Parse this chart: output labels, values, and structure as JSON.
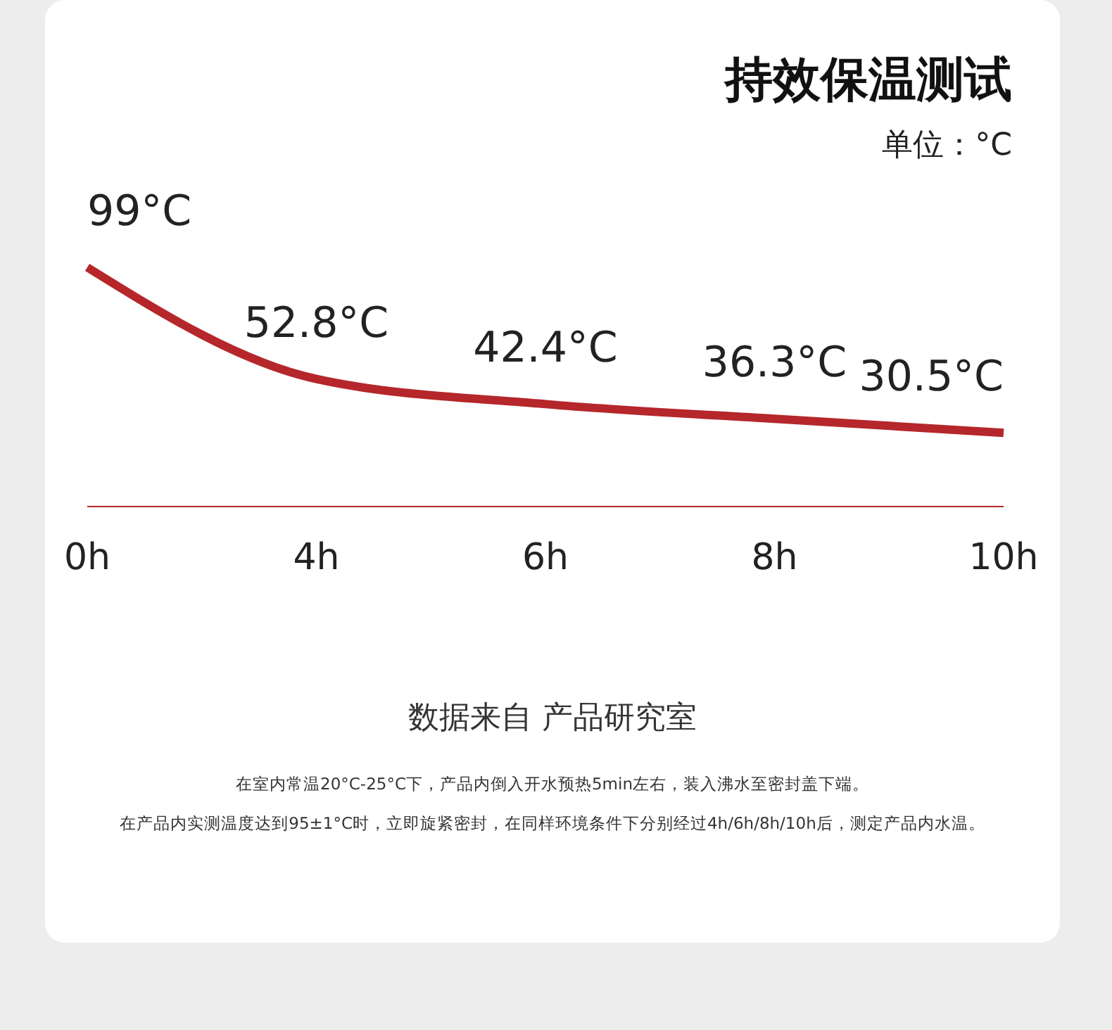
{
  "chart_data": {
    "type": "line",
    "title": "持效保温测试",
    "subtitle": "单位：°C",
    "categories": [
      "0h",
      "4h",
      "6h",
      "8h",
      "10h"
    ],
    "series": [
      {
        "color": "#b5272b",
        "values": [
          99,
          52.8,
          42.4,
          36.3,
          30.5
        ],
        "value_labels": [
          "99°C",
          "52.8°C",
          "42.4°C",
          "36.3°C",
          "30.5°C"
        ]
      }
    ],
    "marker": "none",
    "line_style": "solid",
    "annotations": [
      "数据来自 产品研究室",
      "在室内常温20°C-25°C下，产品内倒入开水预热5min左右，装入沸水至密封盖下端。",
      "在产品内实测温度达到95±1°C时，立即旋紧密封，在同样环境条件下分别经过4h/6h/8h/10h后，测定产品内水温。"
    ]
  }
}
